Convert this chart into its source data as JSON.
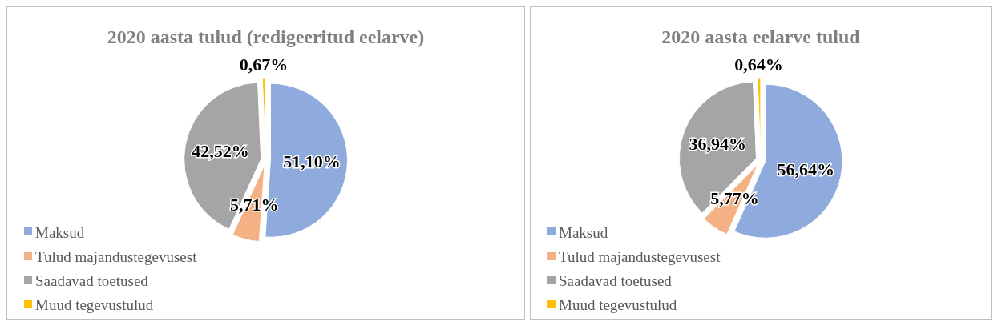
{
  "chart_data": [
    {
      "type": "pie",
      "title": "2020 aasta tulud (redigeeritud eelarve)",
      "categories": [
        "Maksud",
        "Tulud majandustegevusest",
        "Saadavad toetused",
        "Muud tegevustulud"
      ],
      "values": [
        51.1,
        5.71,
        42.52,
        0.67
      ],
      "value_labels": [
        "51,10%",
        "5,71%",
        "42,52%",
        "0,67%"
      ],
      "colors": [
        "#8faadc",
        "#f4b183",
        "#a5a5a5",
        "#ffc000"
      ],
      "legend": "bottom left"
    },
    {
      "type": "pie",
      "title": "2020 aasta eelarve tulud",
      "categories": [
        "Maksud",
        "Tulud majandustegevusest",
        "Saadavad toetused",
        "Muud tegevustulud"
      ],
      "values": [
        56.64,
        5.77,
        36.94,
        0.64
      ],
      "value_labels": [
        "56,64%",
        "5,77%",
        "36,94%",
        "0,64%"
      ],
      "colors": [
        "#8faadc",
        "#f4b183",
        "#a5a5a5",
        "#ffc000"
      ],
      "legend": "bottom left"
    }
  ]
}
